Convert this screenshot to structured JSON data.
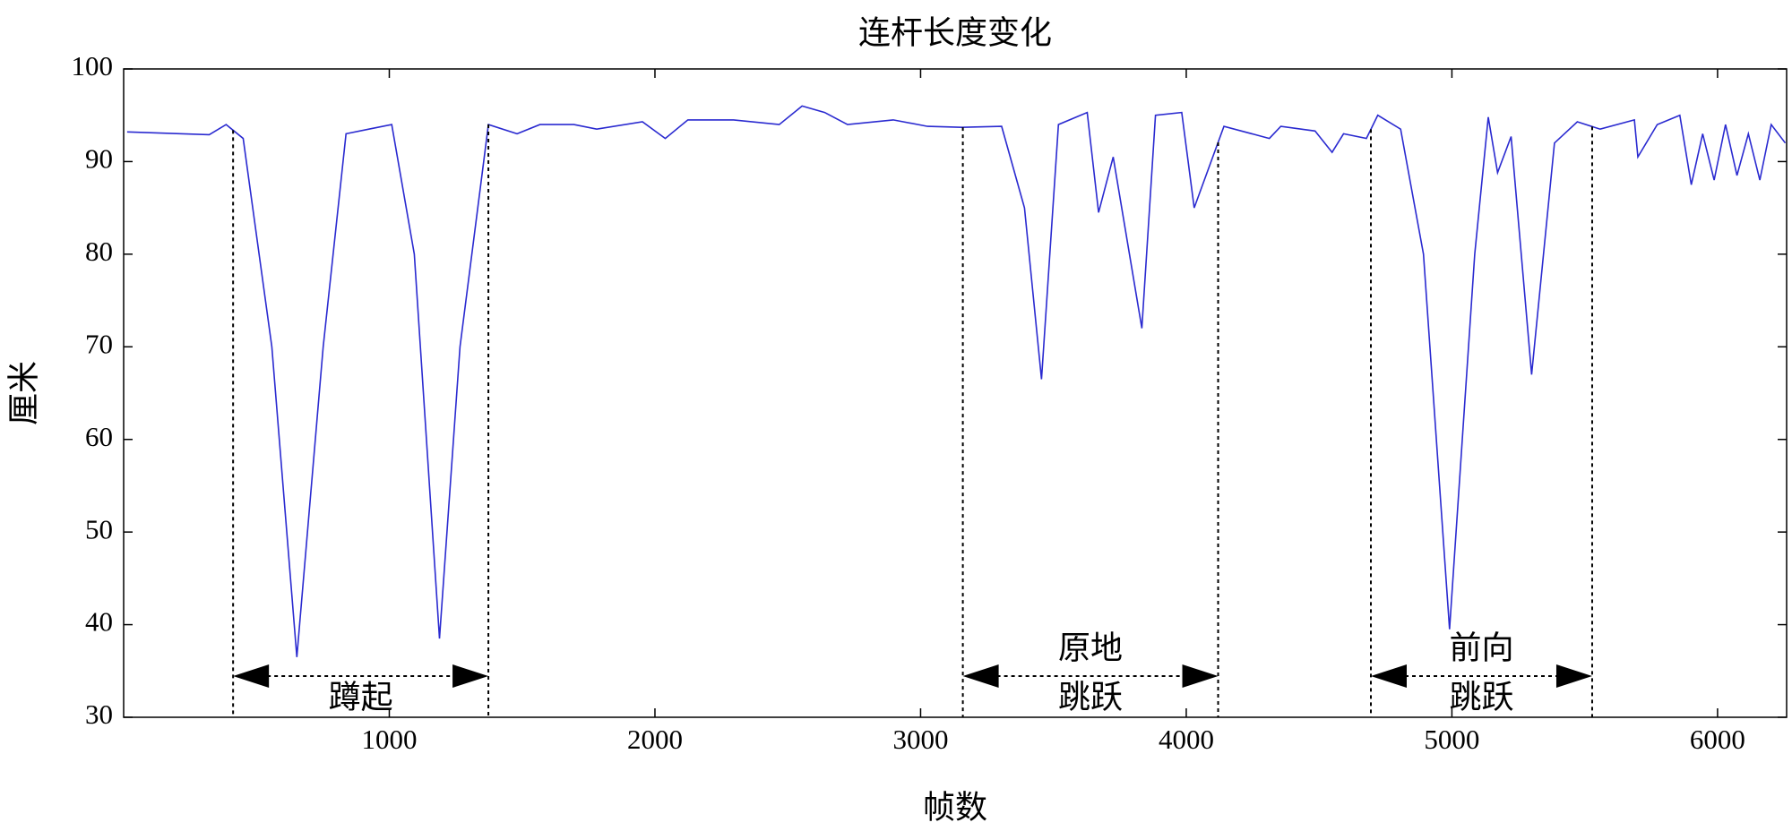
{
  "chart_data": {
    "type": "line",
    "title": "连杆长度变化",
    "xlabel": "帧数",
    "ylabel": "厘米",
    "x": [
      13,
      322,
      386,
      450,
      558,
      652,
      751,
      837,
      923,
      1009,
      1094,
      1189,
      1266,
      1373,
      1481,
      1567,
      1695,
      1781,
      1953,
      2039,
      2124,
      2296,
      2468,
      2554,
      2639,
      2725,
      2897,
      3026,
      3155,
      3305,
      3391,
      3455,
      3519,
      3627,
      3670,
      3725,
      3833,
      3884,
      3983,
      4030,
      4142,
      4313,
      4356,
      4485,
      4549,
      4592,
      4678,
      4721,
      4807,
      4893,
      4991,
      5086,
      5137,
      5172,
      5223,
      5300,
      5386,
      5472,
      5558,
      5687,
      5700,
      5773,
      5858,
      5901,
      5944,
      5987,
      6030,
      6073,
      6116,
      6159,
      6202,
      6255
    ],
    "values": [
      93.2,
      92.9,
      94,
      92.5,
      70,
      36.5,
      70,
      93,
      93.5,
      94,
      80,
      38.5,
      70,
      94,
      93,
      94,
      94,
      93.5,
      94.3,
      92.5,
      94.5,
      94.5,
      94,
      96,
      95.3,
      94,
      94.5,
      93.8,
      93.7,
      93.8,
      85,
      66.5,
      94,
      95.3,
      84.5,
      90.5,
      72,
      95,
      95.3,
      85,
      93.8,
      92.5,
      93.8,
      93.3,
      91,
      93,
      92.5,
      95,
      93.5,
      80,
      39.5,
      80,
      94.8,
      88.8,
      92.7,
      67,
      92,
      94.3,
      93.5,
      94.5,
      90.5,
      94,
      95,
      87.5,
      93,
      88,
      94,
      88.5,
      93,
      88,
      94,
      92
    ],
    "color": "#2a2ad0",
    "xlim": [
      0,
      6260
    ],
    "ylim": [
      30,
      100
    ],
    "xticks": [
      1000,
      2000,
      3000,
      4000,
      5000,
      6000
    ],
    "yticks": [
      30,
      40,
      50,
      60,
      70,
      80,
      90,
      100
    ],
    "annotations": [
      {
        "x_range": [
          412,
          1373
        ],
        "text": [
          "蹲起"
        ]
      },
      {
        "x_range": [
          3159,
          4120
        ],
        "text": [
          "原地",
          "跳跃"
        ]
      },
      {
        "x_range": [
          4695,
          5528
        ],
        "text": [
          "前向",
          "跳跃"
        ]
      }
    ]
  }
}
